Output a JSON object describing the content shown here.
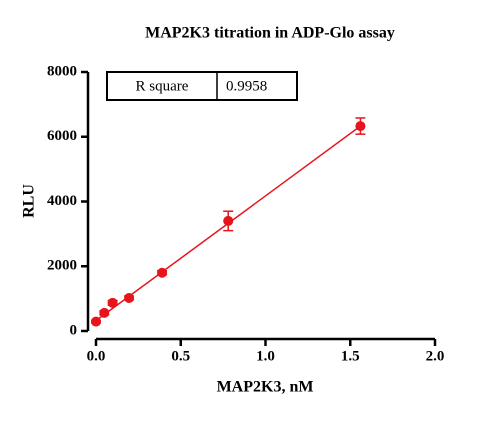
{
  "chart_data": {
    "type": "scatter",
    "title": "MAP2K3 titration in  ADP-Glo assay",
    "x_label": "MAP2K3, nM",
    "y_label": "RLU",
    "xlim": [
      0,
      2.0
    ],
    "xticks": [
      {
        "value": 0,
        "label": "0.0"
      },
      {
        "value": 0.5,
        "label": "0.5"
      },
      {
        "value": 1,
        "label": "1.0"
      },
      {
        "value": 1.5,
        "label": "1.5"
      },
      {
        "value": 2,
        "label": "2.0"
      }
    ],
    "ylim": [
      0,
      8000
    ],
    "yticks": [
      0,
      2000,
      4000,
      6000,
      8000
    ],
    "series": [
      {
        "name": "MAP2K3",
        "color": "#e8141b",
        "x": [
          0,
          0.049,
          0.098,
          0.195,
          0.39,
          0.78,
          1.56
        ],
        "values": [
          290,
          560,
          870,
          1020,
          1800,
          3400,
          6330
        ],
        "errors": [
          40,
          60,
          70,
          60,
          60,
          300,
          250
        ]
      }
    ],
    "fit": {
      "color": "#e8141b",
      "x": [
        0,
        1.56
      ],
      "values": [
        320,
        6330
      ]
    },
    "annotation": {
      "label": "R square",
      "value": "0.9958"
    }
  }
}
